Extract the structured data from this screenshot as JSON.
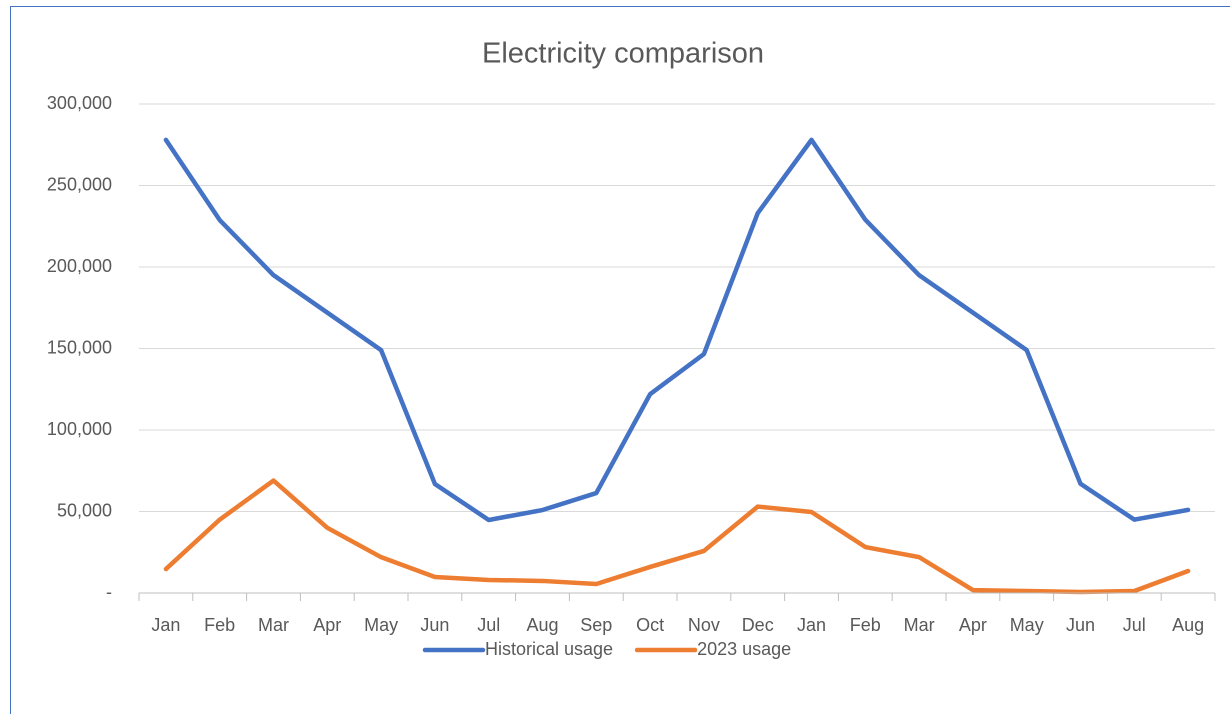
{
  "chart_data": {
    "type": "line",
    "title": "Electricity comparison",
    "categories": [
      "Jan",
      "Feb",
      "Mar",
      "Apr",
      "May",
      "Jun",
      "Jul",
      "Aug",
      "Sep",
      "Oct",
      "Nov",
      "Dec",
      "Jan",
      "Feb",
      "Mar",
      "Apr",
      "May",
      "Jun",
      "Jul",
      "Aug"
    ],
    "series": [
      {
        "name": "Historical usage",
        "color": "#4472c4",
        "values": [
          278000,
          228800,
          195000,
          172000,
          149000,
          66900,
          44800,
          50900,
          61300,
          122000,
          146600,
          233000,
          278000,
          229000,
          195000,
          172000,
          149000,
          67000,
          45000,
          51000
        ]
      },
      {
        "name": "2023 usage",
        "color": "#ed7d31",
        "values": [
          14700,
          45000,
          69000,
          40000,
          22000,
          9800,
          8000,
          7400,
          5500,
          16000,
          25800,
          53000,
          49700,
          28200,
          22000,
          1800,
          1200,
          600,
          1200,
          13500
        ]
      }
    ],
    "ylim": [
      0,
      300000
    ],
    "yticks": [
      {
        "value": 0,
        "label": "-"
      },
      {
        "value": 50000,
        "label": "50,000"
      },
      {
        "value": 100000,
        "label": "100,000"
      },
      {
        "value": 150000,
        "label": "150,000"
      },
      {
        "value": 200000,
        "label": "200,000"
      },
      {
        "value": 250000,
        "label": "250,000"
      },
      {
        "value": 300000,
        "label": "300,000"
      }
    ],
    "grid": true,
    "legend": "bottom"
  }
}
